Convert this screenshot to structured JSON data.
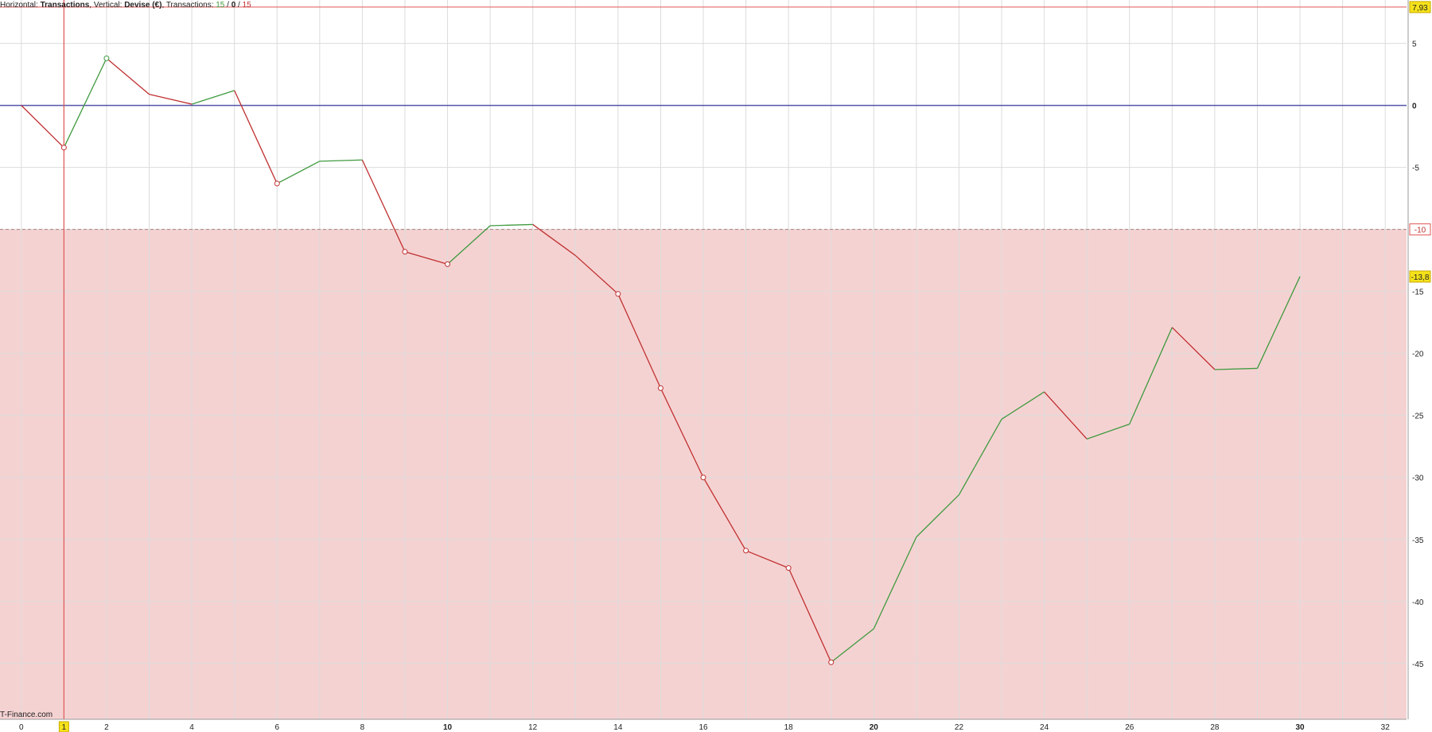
{
  "header": {
    "h_label": "Horizontal: ",
    "h_value": "Transactions",
    "v_label": ", Vertical: ",
    "v_value": "Devise (€)",
    "t_label": ", Transactions: ",
    "t_win": "15",
    "t_sep1": " / ",
    "t_zero": "0",
    "t_sep2": " / ",
    "t_loss": "15"
  },
  "footer": {
    "brand": "T-Finance.com"
  },
  "colors": {
    "up": "#3f9a3f",
    "down": "#c03030",
    "zero_line": "#5555aa",
    "drawdown_zone": "#f5d2d2",
    "max_line": "#e05555",
    "grid": "#dcdcdc",
    "marker_highlight": "#f5e21a"
  },
  "chart_data": {
    "type": "line",
    "xlabel": "Transactions",
    "ylabel": "Devise (€)",
    "xlim": [
      -0.5,
      32.5
    ],
    "ylim": [
      -49.5,
      8.5
    ],
    "x_ticks": [
      "0",
      "2",
      "4",
      "6",
      "8",
      "10",
      "12",
      "14",
      "16",
      "18",
      "20",
      "22",
      "24",
      "26",
      "28",
      "30",
      "32"
    ],
    "x_tick_values": [
      0,
      2,
      4,
      6,
      8,
      10,
      12,
      14,
      16,
      18,
      20,
      22,
      24,
      26,
      28,
      30,
      32
    ],
    "x_bold_ticks": [
      "10",
      "20",
      "30"
    ],
    "y_ticks": [
      "5",
      "0",
      "-5",
      "-15",
      "-20",
      "-25",
      "-30",
      "-35",
      "-40",
      "-45"
    ],
    "y_tick_values": [
      5,
      0,
      -5,
      -15,
      -20,
      -25,
      -30,
      -35,
      -40,
      -45
    ],
    "y_bold_ticks": [
      "0"
    ],
    "grid": true,
    "series": [
      {
        "x": [
          0,
          1,
          2,
          3,
          4,
          5,
          6,
          7,
          8,
          9,
          10,
          11,
          12,
          13,
          14,
          15,
          16,
          17,
          18,
          19,
          20,
          21,
          22,
          23,
          24,
          25,
          26,
          27,
          28,
          29,
          30
        ],
        "y": [
          0,
          -3.4,
          3.8,
          0.9,
          0.1,
          1.2,
          -6.3,
          -4.5,
          -4.4,
          -11.8,
          -12.8,
          -9.7,
          -9.6,
          -12.1,
          -15.2,
          -22.8,
          -30.0,
          -35.9,
          -37.3,
          -44.9,
          -42.2,
          -34.8,
          -31.4,
          -25.3,
          -23.1,
          -26.9,
          -25.7,
          -17.9,
          -21.3,
          -21.2,
          -13.8
        ],
        "markers": [
          1,
          2,
          6,
          9,
          10,
          14,
          15,
          16,
          17,
          18,
          19
        ]
      }
    ],
    "annotations": {
      "max_value": 7.93,
      "max_label": "7,93",
      "drawdown_threshold": -10,
      "drawdown_label": "-10",
      "last_value": -13.8,
      "last_label": "-13,8",
      "cursor_x": 1,
      "cursor_label": "1"
    }
  }
}
